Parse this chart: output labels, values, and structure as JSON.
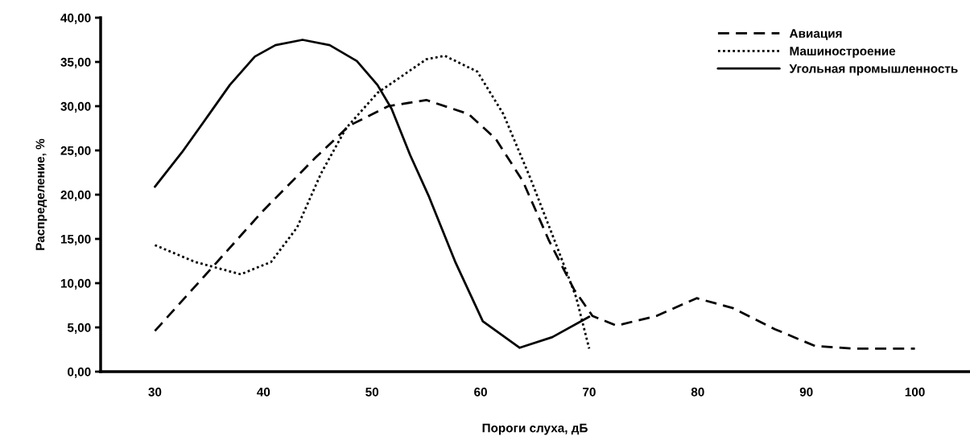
{
  "chart_data": {
    "type": "line",
    "xlabel": "Пороги слуха, дБ",
    "ylabel": "Распределение, %",
    "xlim": [
      25,
      105
    ],
    "xticks": [
      30,
      40,
      50,
      60,
      70,
      80,
      90,
      100
    ],
    "ylim": [
      0,
      40
    ],
    "yticks": [
      {
        "value": 0,
        "label": "0,00"
      },
      {
        "value": 5,
        "label": "5,00"
      },
      {
        "value": 10,
        "label": "10,00"
      },
      {
        "value": 15,
        "label": "15,00"
      },
      {
        "value": 20,
        "label": "20,00"
      },
      {
        "value": 25,
        "label": "25,00"
      },
      {
        "value": 30,
        "label": "30,00"
      },
      {
        "value": 35,
        "label": "35,00"
      },
      {
        "value": 40,
        "label": "40,00"
      }
    ],
    "grid": false,
    "legend": "top right",
    "marker": "none",
    "series": [
      {
        "name": "Авиация",
        "color": "#000000",
        "line_style": "dashed",
        "x": [
          30,
          35,
          39.9,
          44.8,
          47.9,
          51.5,
          55,
          58.9,
          61.4,
          63.9,
          66.3,
          68.6,
          70.3,
          72.5,
          76.2,
          79.9,
          83.2,
          87.1,
          90.8,
          94.5,
          100
        ],
        "values": [
          4.6,
          11.4,
          18.1,
          24.2,
          27.8,
          30,
          30.7,
          29.1,
          26.3,
          21.5,
          14.8,
          9.3,
          6.3,
          5.2,
          6.3,
          8.3,
          7.2,
          4.8,
          2.9,
          2.6,
          2.6
        ]
      },
      {
        "name": "Машиностроение",
        "color": "#000000",
        "line_style": "dotted",
        "x": [
          30,
          33.7,
          37.9,
          40.7,
          43.1,
          45.3,
          47.6,
          50.5,
          55,
          56.7,
          59.7,
          62.1,
          64.6,
          67.1,
          68.8,
          70
        ],
        "values": [
          14.3,
          12.4,
          11,
          12.4,
          16.3,
          22.4,
          27.5,
          31.5,
          35.3,
          35.7,
          33.9,
          29.1,
          21.8,
          13.9,
          8.4,
          2.6
        ]
      },
      {
        "name": "Угольная промышленность",
        "color": "#000000",
        "line_style": "solid",
        "x": [
          30,
          32.5,
          35,
          36.9,
          39.2,
          41.1,
          43.6,
          46.1,
          48.6,
          50.5,
          51.8,
          53.5,
          55.2,
          57.7,
          60.2,
          63.6,
          66.6,
          70
        ],
        "values": [
          20.9,
          24.8,
          29.1,
          32.4,
          35.6,
          36.9,
          37.5,
          36.9,
          35.1,
          32.4,
          29.7,
          24.5,
          19.9,
          12.3,
          5.7,
          2.7,
          3.9,
          6.2
        ]
      }
    ]
  }
}
